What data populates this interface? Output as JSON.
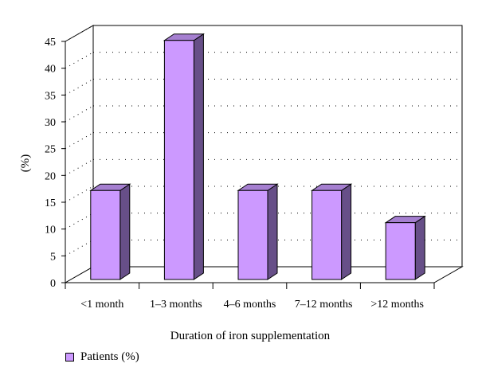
{
  "chart_data": {
    "type": "bar",
    "categories": [
      "<1 month",
      "1–3 months",
      "4–6 months",
      "7–12 months",
      ">12 months"
    ],
    "series": [
      {
        "name": "Patients (%)",
        "values": [
          16,
          44,
          16,
          16,
          10
        ]
      }
    ],
    "title": "",
    "xlabel": "Duration of iron supplementation",
    "ylabel": "(%)",
    "ylim": [
      0,
      45
    ],
    "yticks": [
      0,
      5,
      10,
      15,
      20,
      25,
      30,
      35,
      40,
      45
    ],
    "grid": true,
    "legend_position": "bottom-left",
    "style": "3d",
    "colors": {
      "bar_front": "#cc99ff",
      "bar_top": "#a57fd0",
      "bar_side": "#674f88"
    }
  }
}
